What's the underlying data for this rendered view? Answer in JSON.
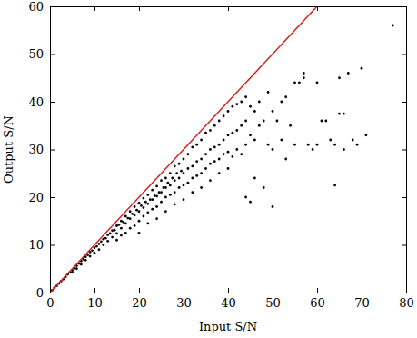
{
  "chart_data": {
    "type": "scatter",
    "xlabel": "Input S/N",
    "ylabel": "Output S/N",
    "xlim": [
      0,
      80
    ],
    "ylim": [
      0,
      60
    ],
    "xticks": [
      0,
      10,
      20,
      30,
      40,
      50,
      60,
      70,
      80
    ],
    "yticks": [
      0,
      10,
      20,
      30,
      40,
      50,
      60
    ],
    "series": [
      {
        "type": "scatter",
        "color": "#000000",
        "marker": "circle",
        "x": [
          0.5,
          1,
          1.5,
          2,
          2.5,
          3,
          3.5,
          4,
          4.5,
          5,
          5,
          5.5,
          6,
          6,
          6.5,
          7,
          7,
          7.5,
          8,
          8,
          8.5,
          9,
          9,
          9.5,
          10,
          10,
          10.5,
          11,
          11,
          11.5,
          12,
          12,
          12.5,
          13,
          13,
          13.5,
          14,
          14,
          14.5,
          15,
          15,
          15,
          15.5,
          16,
          16,
          16,
          16.5,
          17,
          17,
          17,
          17.5,
          18,
          18,
          18,
          18.5,
          19,
          19,
          19,
          19.5,
          20,
          20,
          20,
          20,
          20.5,
          21,
          21,
          21,
          21.5,
          22,
          22,
          22,
          22,
          22.5,
          23,
          23,
          23,
          23.5,
          24,
          24,
          24,
          24,
          24.5,
          25,
          25,
          25,
          25.5,
          26,
          26,
          26,
          26,
          26.5,
          27,
          27,
          27,
          27.5,
          28,
          28,
          28,
          28,
          28.5,
          29,
          29,
          29,
          29.5,
          30,
          30,
          30,
          30,
          31,
          31,
          31,
          32,
          32,
          32,
          32,
          33,
          33,
          33,
          34,
          34,
          34,
          34,
          35,
          35,
          35,
          36,
          36,
          36,
          36,
          37,
          37,
          37,
          38,
          38,
          38,
          38,
          39,
          39,
          39,
          40,
          40,
          40,
          40,
          41,
          41,
          41,
          42,
          42,
          42,
          43,
          43,
          43,
          44,
          44,
          44,
          44,
          45,
          45,
          45,
          46,
          46,
          46,
          47,
          47,
          48,
          48,
          49,
          49,
          50,
          50,
          50,
          51,
          52,
          52,
          53,
          53,
          54,
          55,
          55,
          56,
          57,
          57,
          58,
          59,
          60,
          60,
          61,
          62,
          63,
          64,
          64,
          65,
          65,
          66,
          66,
          67,
          68,
          69,
          70,
          71,
          77
        ],
        "values": [
          0.5,
          1,
          1.4,
          1.9,
          2.4,
          2.8,
          3.3,
          3.8,
          4.2,
          4.7,
          4.3,
          5.1,
          5.6,
          5.0,
          6.1,
          6.6,
          5.9,
          7.0,
          7.5,
          6.8,
          7.9,
          8.5,
          7.6,
          8.8,
          9.4,
          8.3,
          9.7,
          10.2,
          9.0,
          10.7,
          11.2,
          10.0,
          11.4,
          12.1,
          10.8,
          12.4,
          13.0,
          11.6,
          13.1,
          14.0,
          12.4,
          11.0,
          14.2,
          15.0,
          13.5,
          12.0,
          14.8,
          16.0,
          14.5,
          12.5,
          15.6,
          17.0,
          15.5,
          13.5,
          16.5,
          18.0,
          16.2,
          14.0,
          17.3,
          18.8,
          17.0,
          15.0,
          12.5,
          18.2,
          19.8,
          17.8,
          16.0,
          19.0,
          20.5,
          18.6,
          16.8,
          14.5,
          19.5,
          21.5,
          19.5,
          17.5,
          20.3,
          22.3,
          20.2,
          18.0,
          15.5,
          21.0,
          23.5,
          21.0,
          19.0,
          22.0,
          24.0,
          22.0,
          20.0,
          17.0,
          23.0,
          25.0,
          22.5,
          20.5,
          24.0,
          26.5,
          23.5,
          21.0,
          18.5,
          25.0,
          27.0,
          24.0,
          22.0,
          25.5,
          28.0,
          25.0,
          22.5,
          19.5,
          29.0,
          26.0,
          23.0,
          30.5,
          26.5,
          24.0,
          21.0,
          31.0,
          27.5,
          24.5,
          32.0,
          28.0,
          25.0,
          22.0,
          33.5,
          29.0,
          26.0,
          34.0,
          30.0,
          27.0,
          23.5,
          35.0,
          30.5,
          27.5,
          36.0,
          31.0,
          28.0,
          25.0,
          37.0,
          32.0,
          29.0,
          38.0,
          33.0,
          29.5,
          26.0,
          39.0,
          33.5,
          28.5,
          39.5,
          34.0,
          30.0,
          40.0,
          35.0,
          29.0,
          41.0,
          36.0,
          31.0,
          20.0,
          39.0,
          33.0,
          19.0,
          38.0,
          32.0,
          24.0,
          40.0,
          35.0,
          22.0,
          36.0,
          42.0,
          31.0,
          18.0,
          38.0,
          30.0,
          36.0,
          40.0,
          32.0,
          41.0,
          28.0,
          35.0,
          31.0,
          44.0,
          44.0,
          46.0,
          45.0,
          31.0,
          30.0,
          31.0,
          44.0,
          36.0,
          36.0,
          32.0,
          22.5,
          31.0,
          45.0,
          37.5,
          37.5,
          30.0,
          46.0,
          32.0,
          31.0,
          47.0,
          33.0,
          56.0
        ]
      },
      {
        "type": "line",
        "color": "#d42020",
        "line_style": "solid",
        "x": [
          0,
          60
        ],
        "values": [
          0,
          60
        ]
      }
    ]
  }
}
